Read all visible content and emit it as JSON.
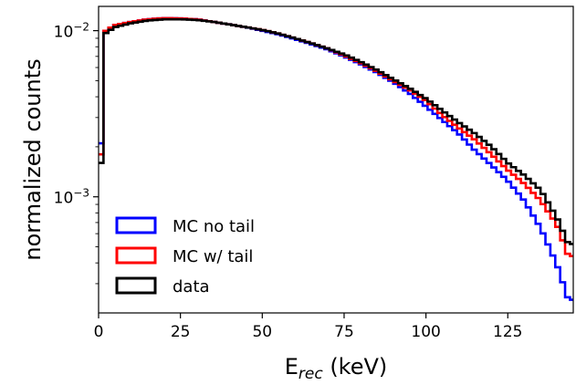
{
  "chart_data": {
    "type": "histogram-step",
    "xlabel": "E",
    "xlabel_sub": "rec",
    "xlabel_unit": " (keV)",
    "ylabel": "normalized counts",
    "xlim": [
      0,
      145
    ],
    "ylim": [
      0.0002,
      0.014
    ],
    "yscale": "log",
    "bin_width": 1.5,
    "x_ticks": [
      0,
      25,
      50,
      75,
      100,
      125
    ],
    "x_tick_labels": [
      "0",
      "25",
      "50",
      "75",
      "100",
      "125"
    ],
    "y_ticks": [
      0.01,
      0.001
    ],
    "y_tick_base": [
      "10",
      "10"
    ],
    "y_tick_exp": [
      "−2",
      "−3"
    ],
    "legend_position": "lower-left",
    "series": [
      {
        "name": "MC no tail",
        "color": "#0000ff",
        "profile": [
          [
            0,
            0.0021
          ],
          [
            1.5,
            0.0021
          ],
          [
            1.6,
            0.0098
          ],
          [
            5,
            0.0108
          ],
          [
            10,
            0.0113
          ],
          [
            15,
            0.0117
          ],
          [
            20,
            0.0119
          ],
          [
            25,
            0.01185
          ],
          [
            30,
            0.0117
          ],
          [
            35,
            0.0113
          ],
          [
            40,
            0.0109
          ],
          [
            45,
            0.0105
          ],
          [
            50,
            0.01
          ],
          [
            55,
            0.0095
          ],
          [
            60,
            0.0089
          ],
          [
            65,
            0.0083
          ],
          [
            70,
            0.0077
          ],
          [
            75,
            0.007
          ],
          [
            80,
            0.0063
          ],
          [
            85,
            0.0056
          ],
          [
            90,
            0.0049
          ],
          [
            95,
            0.0042
          ],
          [
            100,
            0.0035
          ],
          [
            105,
            0.0029
          ],
          [
            110,
            0.0024
          ],
          [
            115,
            0.0019
          ],
          [
            120,
            0.00155
          ],
          [
            125,
            0.00125
          ],
          [
            130,
            0.00095
          ],
          [
            135,
            0.00065
          ],
          [
            140,
            0.00039
          ],
          [
            143.5,
            0.00024
          ]
        ]
      },
      {
        "name": "MC w/ tail",
        "color": "#ff0000",
        "profile": [
          [
            0,
            0.0018
          ],
          [
            1.5,
            0.0018
          ],
          [
            1.6,
            0.0098
          ],
          [
            5,
            0.0108
          ],
          [
            10,
            0.0113
          ],
          [
            15,
            0.0117
          ],
          [
            20,
            0.0119
          ],
          [
            25,
            0.01185
          ],
          [
            30,
            0.0117
          ],
          [
            35,
            0.0113
          ],
          [
            40,
            0.0109
          ],
          [
            45,
            0.0105
          ],
          [
            50,
            0.0101
          ],
          [
            55,
            0.0096
          ],
          [
            60,
            0.009
          ],
          [
            65,
            0.0084
          ],
          [
            70,
            0.0078
          ],
          [
            75,
            0.0071
          ],
          [
            80,
            0.0064
          ],
          [
            85,
            0.0057
          ],
          [
            90,
            0.005
          ],
          [
            95,
            0.0044
          ],
          [
            100,
            0.0038
          ],
          [
            105,
            0.0031
          ],
          [
            110,
            0.0026
          ],
          [
            115,
            0.0022
          ],
          [
            120,
            0.0018
          ],
          [
            125,
            0.00145
          ],
          [
            130,
            0.0012
          ],
          [
            135,
            0.00095
          ],
          [
            140,
            0.00068
          ],
          [
            143.5,
            0.00044
          ]
        ]
      },
      {
        "name": "data",
        "color": "#000000",
        "profile": [
          [
            0,
            0.0016
          ],
          [
            1.5,
            0.0016
          ],
          [
            1.6,
            0.0095
          ],
          [
            5,
            0.0105
          ],
          [
            10,
            0.0111
          ],
          [
            15,
            0.0115
          ],
          [
            20,
            0.0117
          ],
          [
            25,
            0.0117
          ],
          [
            30,
            0.0116
          ],
          [
            35,
            0.0113
          ],
          [
            40,
            0.0109
          ],
          [
            45,
            0.0105
          ],
          [
            50,
            0.0101
          ],
          [
            55,
            0.0096
          ],
          [
            60,
            0.009
          ],
          [
            65,
            0.0084
          ],
          [
            70,
            0.0078
          ],
          [
            75,
            0.0072
          ],
          [
            80,
            0.0065
          ],
          [
            85,
            0.0058
          ],
          [
            90,
            0.0051
          ],
          [
            95,
            0.0045
          ],
          [
            100,
            0.0039
          ],
          [
            105,
            0.0033
          ],
          [
            110,
            0.0028
          ],
          [
            115,
            0.0024
          ],
          [
            120,
            0.002
          ],
          [
            125,
            0.0016
          ],
          [
            130,
            0.00135
          ],
          [
            135,
            0.0011
          ],
          [
            140,
            0.00075
          ],
          [
            143.5,
            0.00052
          ]
        ]
      }
    ]
  }
}
